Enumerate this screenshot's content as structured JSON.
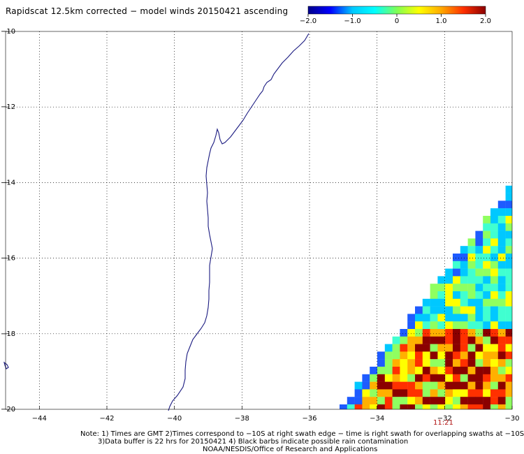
{
  "title": "Rapidscat 12.5km corrected − model winds 20150421 ascending",
  "colorbar": {
    "tick_labels": [
      "−2.0",
      "−1.0",
      "0",
      "1.0",
      "2.0"
    ],
    "tick_values": [
      -2.0,
      -1.0,
      0,
      1.0,
      2.0
    ],
    "range": [
      -2.0,
      2.0
    ],
    "stops": [
      "#00008b",
      "#0000ff",
      "#00c8ff",
      "#00ffff",
      "#7fff55",
      "#ffff00",
      "#ffaa00",
      "#ff3000",
      "#8b0000"
    ]
  },
  "map": {
    "lon_range": [
      -45,
      -30
    ],
    "lat_range": [
      -20,
      -10
    ],
    "lon_ticks": [
      -44,
      -42,
      -40,
      -38,
      -36,
      -34,
      -32,
      -30
    ],
    "lat_ticks": [
      -10,
      -12,
      -14,
      -16,
      -18,
      -20
    ],
    "lon_tick_labels": [
      "−44",
      "−42",
      "−40",
      "−38",
      "−36",
      "−34",
      "−32",
      "−30"
    ],
    "lat_tick_labels": [
      "−10",
      "−12",
      "−14",
      "−16",
      "−18",
      "−20"
    ],
    "grid": "dotted",
    "coastline_color": "#1a1a80"
  },
  "swath_time": "11:21",
  "notes": [
    "Note: 1) Times are GMT 2)Times correspond to −10S at right swath edge − time is right swath for overlapping swaths at −10S",
    "3)Data buffer is 22 hrs for 20150421 4) Black barbs indicate possible rain contamination",
    "NOAA/NESDIS/Office of Research and Applications"
  ]
}
